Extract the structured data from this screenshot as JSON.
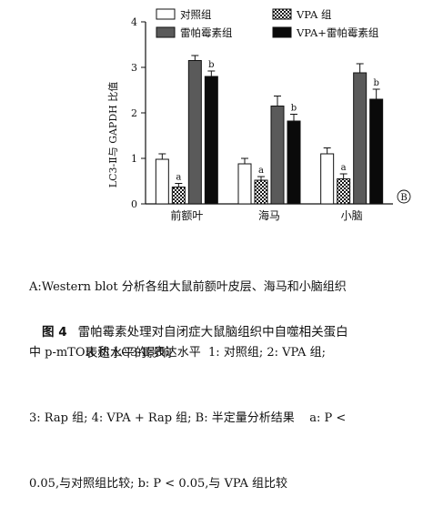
{
  "chart_data": {
    "type": "bar",
    "categories": [
      "前额叶",
      "海马",
      "小脑"
    ],
    "ylabel": "LC3-Ⅱ与 GAPDH 比值",
    "ylim": [
      0,
      4
    ],
    "yticks": [
      0,
      1,
      2,
      3,
      4
    ],
    "panel_label": "B",
    "legend_placement": "top",
    "series": [
      {
        "name": "对照组",
        "values": [
          0.98,
          0.88,
          1.1
        ],
        "errors": [
          0.12,
          0.12,
          0.13
        ],
        "annotations": [
          "",
          "",
          ""
        ],
        "fill": "#ffffff",
        "pattern": "solid"
      },
      {
        "name": "VPA 组",
        "values": [
          0.37,
          0.52,
          0.55
        ],
        "errors": [
          0.08,
          0.08,
          0.11
        ],
        "annotations": [
          "a",
          "a",
          "a"
        ],
        "fill": "#ffffff",
        "pattern": "checker"
      },
      {
        "name": "雷帕霉素组",
        "values": [
          3.15,
          2.15,
          2.88
        ],
        "errors": [
          0.11,
          0.22,
          0.2
        ],
        "annotations": [
          "",
          "",
          ""
        ],
        "fill": "#5a5a5a",
        "pattern": "solid"
      },
      {
        "name": "VPA+雷帕霉素组",
        "values": [
          2.8,
          1.82,
          2.3
        ],
        "errors": [
          0.12,
          0.15,
          0.22
        ],
        "annotations": [
          "b",
          "b",
          "b"
        ],
        "fill": "#0a0a0a",
        "pattern": "solid"
      }
    ]
  },
  "caption": {
    "line1": "A:Western blot 分析各组大鼠前额叶皮层、海马和小脑组织",
    "line2": "中 p-mTOR 和 LC3-Ⅱ 表达水平  1: 对照组; 2: VPA 组;",
    "line3": "3: Rap 组; 4: VPA + Rap 组; B: 半定量分析结果    a: P <",
    "line4": "0.05,与对照组比较; b: P < 0.05,与 VPA 组比较"
  },
  "figure": {
    "label": "图 4",
    "title_line1": "雷帕霉素处理对自闭症大鼠脑组织中自噬相关蛋白",
    "title_line2": "表达水平的影响"
  }
}
